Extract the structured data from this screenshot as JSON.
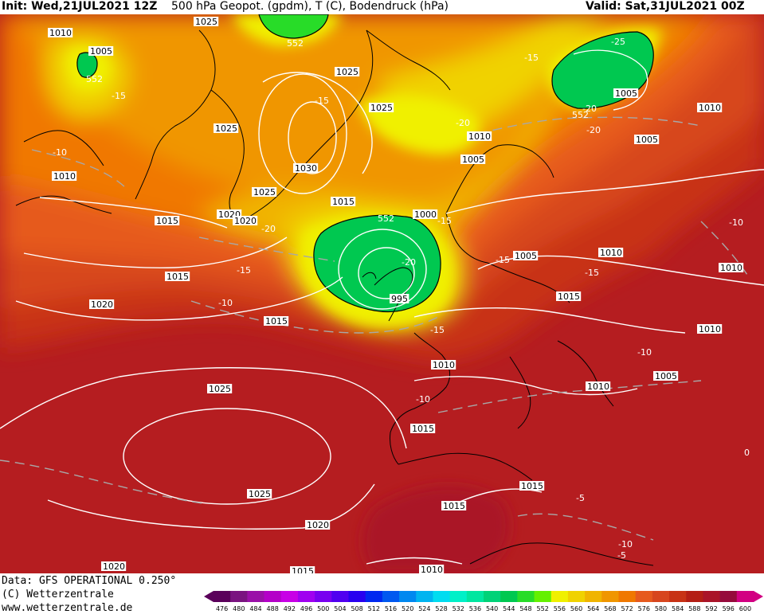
{
  "header": {
    "init": "Init: Wed,21JUL2021 12Z",
    "title": "500 hPa Geopot. (gpdm), T (C), Bodendruck (hPa)",
    "valid": "Valid: Sat,31JUL2021 00Z"
  },
  "footer": {
    "data_line": "Data: GFS OPERATIONAL 0.250°",
    "copyright_line": "(C) Wetterzentrale",
    "url_line": "www.wetterzentrale.de"
  },
  "legend": {
    "values": [
      "476",
      "480",
      "484",
      "488",
      "492",
      "496",
      "500",
      "504",
      "508",
      "512",
      "516",
      "520",
      "524",
      "528",
      "532",
      "536",
      "540",
      "544",
      "548",
      "552",
      "556",
      "560",
      "564",
      "568",
      "572",
      "576",
      "580",
      "584",
      "588",
      "592",
      "596",
      "600"
    ],
    "colors": [
      "#5a005a",
      "#7a1480",
      "#9a10a8",
      "#b400c8",
      "#c800e6",
      "#a000f0",
      "#7800f0",
      "#5000f0",
      "#2800f0",
      "#0028f0",
      "#0058f0",
      "#0088f0",
      "#00b4f0",
      "#00dcf0",
      "#00f0c8",
      "#00e6a0",
      "#00d278",
      "#00c850",
      "#28dc28",
      "#64f000",
      "#f0f000",
      "#f0d200",
      "#f0b400",
      "#f09600",
      "#f07800",
      "#e65a1e",
      "#d7461e",
      "#c83214",
      "#b41e14",
      "#aa1428",
      "#960a3c",
      "#d20082"
    ]
  },
  "map_labels": {
    "pressure": [
      {
        "text": "1010"
      },
      {
        "text": "1005"
      },
      {
        "text": "1025"
      },
      {
        "text": "1025"
      },
      {
        "text": "1025"
      },
      {
        "text": "1025"
      },
      {
        "text": "1030"
      },
      {
        "text": "1025"
      },
      {
        "text": "1010"
      },
      {
        "text": "1015"
      },
      {
        "text": "1020"
      },
      {
        "text": "1020"
      },
      {
        "text": "1015"
      },
      {
        "text": "1015"
      },
      {
        "text": "1020"
      },
      {
        "text": "1015"
      },
      {
        "text": "1000"
      },
      {
        "text": "995"
      },
      {
        "text": "1010"
      },
      {
        "text": "1005"
      },
      {
        "text": "1005"
      },
      {
        "text": "1005"
      },
      {
        "text": "1010"
      },
      {
        "text": "1005"
      },
      {
        "text": "1010"
      },
      {
        "text": "1015"
      },
      {
        "text": "1010"
      },
      {
        "text": "1010"
      },
      {
        "text": "1005"
      },
      {
        "text": "1010"
      },
      {
        "text": "1010"
      },
      {
        "text": "1015"
      },
      {
        "text": "1025"
      },
      {
        "text": "1025"
      },
      {
        "text": "1020"
      },
      {
        "text": "1015"
      },
      {
        "text": "1015"
      },
      {
        "text": "1020"
      },
      {
        "text": "1015"
      },
      {
        "text": "1010"
      }
    ],
    "temperature": [
      {
        "text": "-15"
      },
      {
        "text": "-10"
      },
      {
        "text": "-15"
      },
      {
        "text": "-20"
      },
      {
        "text": "-20"
      },
      {
        "text": "-15"
      },
      {
        "text": "-10"
      },
      {
        "text": "-15"
      },
      {
        "text": "-20"
      },
      {
        "text": "-15"
      },
      {
        "text": "-20"
      },
      {
        "text": "-15"
      },
      {
        "text": "-25"
      },
      {
        "text": "-20"
      },
      {
        "text": "-15"
      },
      {
        "text": "-15"
      },
      {
        "text": "-10"
      },
      {
        "text": "-10"
      },
      {
        "text": "-10"
      },
      {
        "text": "-5"
      },
      {
        "text": "-5"
      },
      {
        "text": "-10"
      },
      {
        "text": "0"
      }
    ],
    "geopotential": [
      {
        "text": "552"
      },
      {
        "text": "552"
      },
      {
        "text": "552"
      },
      {
        "text": "552"
      }
    ]
  }
}
